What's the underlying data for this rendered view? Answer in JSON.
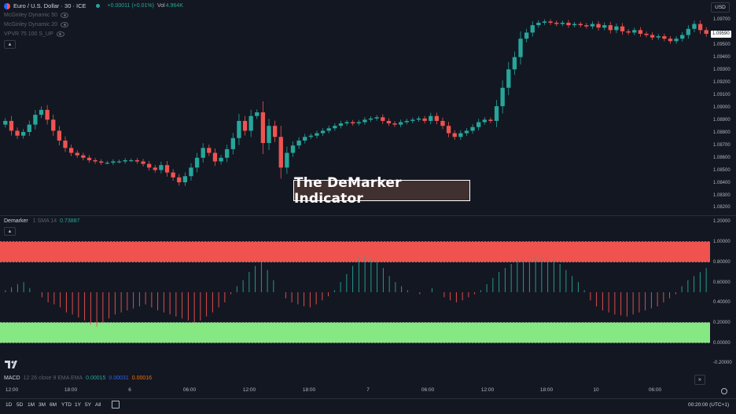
{
  "header": {
    "symbol": "Euro / U.S. Dollar · 30 · ICE",
    "change": "+0.00011 (+0.01%)",
    "vol_label": "Vol",
    "vol_value": "4.964K",
    "currency": "USD",
    "current_price": "1.09590"
  },
  "indicators": [
    {
      "label": "McGinley Dynamic 50"
    },
    {
      "label": "McGinley Dynamic 20"
    },
    {
      "label": "VPVR 75 100 S_UP"
    }
  ],
  "overlay_title": "The DeMarker Indicator",
  "demarker": {
    "name": "Demarker",
    "params": "1 SMA 14",
    "value": "0.73887"
  },
  "macd": {
    "name": "MACD",
    "params": "12 26 close 9 EMA EMA",
    "v1": "0.00015",
    "v2": "0.00031",
    "v3": "0.00016"
  },
  "price_axis": [
    "1.09700",
    "1.09500",
    "1.09400",
    "1.09300",
    "1.09200",
    "1.09100",
    "1.09000",
    "1.08900",
    "1.08800",
    "1.08700",
    "1.08600",
    "1.08500",
    "1.08400",
    "1.08300",
    "1.08200"
  ],
  "dem_axis": [
    "1.20000",
    "1.00000",
    "0.80000",
    "0.60000",
    "0.40000",
    "0.20000",
    "0.00000",
    "-0.20000"
  ],
  "time_axis": [
    "12:00",
    "18:00",
    "6",
    "06:00",
    "12:00",
    "18:00",
    "7",
    "06:00",
    "12:00",
    "18:00",
    "10",
    "06:00"
  ],
  "range_buttons": [
    "1D",
    "5D",
    "1M",
    "3M",
    "6M",
    "YTD",
    "1Y",
    "5Y",
    "All"
  ],
  "clock": "00:20:00 (UTC+1)",
  "colors": {
    "up": "#26a69a",
    "down": "#ef5350",
    "band_high": "#f0524e",
    "band_low": "#86e883",
    "background": "#131722"
  },
  "chart_data": [
    {
      "type": "candlestick",
      "title": "Euro / U.S. Dollar · 30 · ICE",
      "ylim": [
        1.0815,
        1.0975
      ],
      "close_values": [
        1.0888,
        1.088,
        1.0876,
        1.0879,
        1.0885,
        1.0893,
        1.0897,
        1.0889,
        1.088,
        1.0872,
        1.0866,
        1.0862,
        1.086,
        1.0858,
        1.0856,
        1.0855,
        1.0854,
        1.0854,
        1.0855,
        1.0855,
        1.0856,
        1.0856,
        1.0855,
        1.0853,
        1.085,
        1.0848,
        1.0852,
        1.0846,
        1.0842,
        1.0838,
        1.0843,
        1.085,
        1.0858,
        1.0866,
        1.0862,
        1.0855,
        1.0858,
        1.0865,
        1.0874,
        1.0888,
        1.088,
        1.0892,
        1.0895,
        1.087,
        1.0884,
        1.0875,
        1.085,
        1.0862,
        1.0868,
        1.0872,
        1.0875,
        1.0876,
        1.0878,
        1.088,
        1.0882,
        1.0884,
        1.0886,
        1.0887,
        1.0886,
        1.0887,
        1.0889,
        1.089,
        1.0891,
        1.0888,
        1.0886,
        1.0885,
        1.0887,
        1.0888,
        1.0889,
        1.089,
        1.0888,
        1.0892,
        1.0888,
        1.0884,
        1.0878,
        1.0875,
        1.0878,
        1.088,
        1.0883,
        1.0887,
        1.0889,
        1.0888,
        1.09,
        1.0915,
        1.093,
        1.094,
        1.0955,
        1.096,
        1.0966,
        1.0968,
        1.0969,
        1.0968,
        1.0967,
        1.0968,
        1.0966,
        1.0967,
        1.0966,
        1.0965,
        1.0967,
        1.0964,
        1.0966,
        1.0962,
        1.0965,
        1.0961,
        1.096,
        1.0962,
        1.0959,
        1.0958,
        1.0956,
        1.0957,
        1.0955,
        1.0953,
        1.0955,
        1.0958,
        1.0963,
        1.0967,
        1.0962,
        1.0959
      ]
    },
    {
      "type": "bar",
      "title": "Demarker 1 SMA 14",
      "ylim": [
        -0.2,
        1.2
      ],
      "overbought_band": [
        0.8,
        1.0
      ],
      "oversold_band": [
        0.0,
        0.2
      ],
      "baseline": 0.5,
      "values": [
        0.52,
        0.55,
        0.58,
        0.6,
        0.54,
        0.5,
        0.45,
        0.4,
        0.38,
        0.35,
        0.3,
        0.28,
        0.25,
        0.22,
        0.18,
        0.16,
        0.2,
        0.24,
        0.28,
        0.3,
        0.32,
        0.34,
        0.36,
        0.38,
        0.35,
        0.32,
        0.3,
        0.28,
        0.26,
        0.24,
        0.22,
        0.2,
        0.22,
        0.26,
        0.3,
        0.35,
        0.4,
        0.48,
        0.56,
        0.62,
        0.7,
        0.76,
        0.8,
        0.72,
        0.62,
        0.5,
        0.44,
        0.4,
        0.38,
        0.36,
        0.35,
        0.38,
        0.42,
        0.46,
        0.52,
        0.6,
        0.68,
        0.76,
        0.84,
        0.86,
        0.84,
        0.8,
        0.74,
        0.66,
        0.6,
        0.56,
        0.52,
        0.5,
        0.48,
        0.5,
        0.54,
        0.5,
        0.45,
        0.42,
        0.4,
        0.42,
        0.45,
        0.48,
        0.52,
        0.58,
        0.64,
        0.7,
        0.74,
        0.78,
        0.82,
        0.84,
        0.86,
        0.86,
        0.85,
        0.84,
        0.82,
        0.78,
        0.72,
        0.66,
        0.6,
        0.52,
        0.42,
        0.36,
        0.32,
        0.3,
        0.28,
        0.27,
        0.26,
        0.28,
        0.3,
        0.32,
        0.34,
        0.36,
        0.4,
        0.44,
        0.48,
        0.56,
        0.62,
        0.66,
        0.7,
        0.73887
      ]
    }
  ]
}
